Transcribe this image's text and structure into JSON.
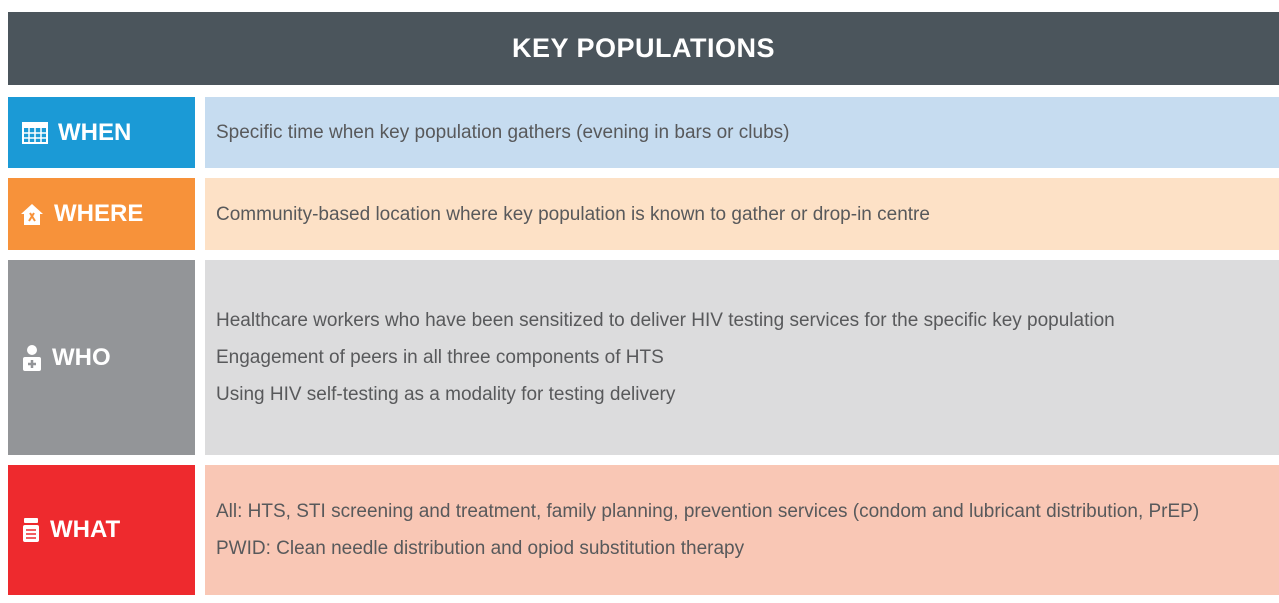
{
  "header": {
    "title": "KEY POPULATIONS"
  },
  "rows": [
    {
      "label": "WHEN",
      "items": [
        "Specific time when key population gathers (evening in bars or clubs)"
      ]
    },
    {
      "label": "WHERE",
      "items": [
        "Community-based location where key population is known to gather or drop-in centre"
      ]
    },
    {
      "label": "WHO",
      "items": [
        "Healthcare workers who have been sensitized to deliver HIV testing services for the specific key population",
        "Engagement of peers in all three components of HTS",
        "Using HIV self-testing as a modality for testing delivery"
      ]
    },
    {
      "label": "WHAT",
      "items": [
        "All: HTS, STI screening and treatment, family planning, prevention services (condom and lubricant distribution, PrEP)",
        "PWID: Clean needle distribution and opiod substitution therapy"
      ]
    }
  ]
}
